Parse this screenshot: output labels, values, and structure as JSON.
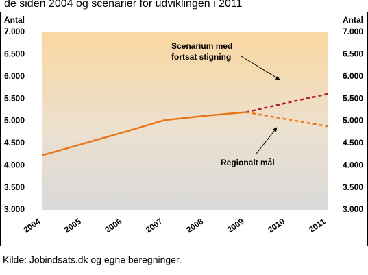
{
  "chart_data": {
    "type": "line",
    "title": "de siden 2004 og scenarier for udviklingen i 2011",
    "y_label": "Antal",
    "y2_label": "Antal",
    "categories": [
      "2004",
      "2005",
      "2006",
      "2007",
      "2008",
      "2009",
      "2010",
      "2011"
    ],
    "series": [
      {
        "color": "#e8751a",
        "style": "solid",
        "values": [
          4230,
          4490,
          4750,
          5020,
          5120,
          5200,
          null,
          null
        ]
      },
      {
        "color": "#b5172b",
        "style": "dashed",
        "values": [
          null,
          null,
          null,
          null,
          null,
          5200,
          5410,
          5610
        ]
      },
      {
        "color": "#f07a1e",
        "style": "dashed",
        "values": [
          null,
          null,
          null,
          null,
          null,
          5200,
          5040,
          4880
        ]
      }
    ],
    "ylim": [
      3000,
      7000
    ],
    "yticks": [
      {
        "value": 3000,
        "label": "3.000"
      },
      {
        "value": 3500,
        "label": "3.500"
      },
      {
        "value": 4000,
        "label": "4.000"
      },
      {
        "value": 4500,
        "label": "4.500"
      },
      {
        "value": 5000,
        "label": "5.000"
      },
      {
        "value": 5500,
        "label": "5.500"
      },
      {
        "value": 6000,
        "label": "6.000"
      },
      {
        "value": 6500,
        "label": "6.500"
      },
      {
        "value": 7000,
        "label": "7.000"
      }
    ],
    "annotations": [
      "Scenarium med",
      "fortsat stigning",
      "Regionalt mål"
    ],
    "source": "Kilde: Jobindsats.dk og egne beregninger."
  }
}
